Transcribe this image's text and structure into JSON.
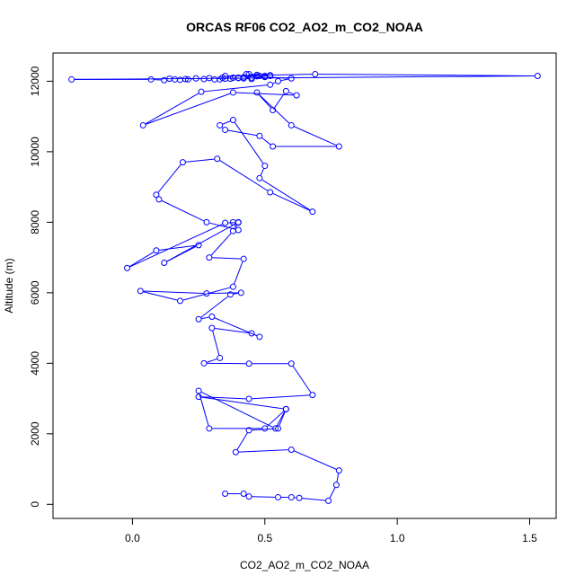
{
  "chart_data": {
    "type": "line",
    "title": "ORCAS RF06 CO2_AO2_m_CO2_NOAA",
    "xlabel": "CO2_AO2_m_CO2_NOAA",
    "ylabel": "Altitude (m)",
    "xlim": [
      -0.3,
      1.6
    ],
    "ylim": [
      -400,
      12800
    ],
    "x_ticks": [
      0.0,
      0.5,
      1.0,
      1.5
    ],
    "x_tick_labels": [
      "0.0",
      "0.5",
      "1.0",
      "1.5"
    ],
    "y_ticks": [
      0,
      2000,
      4000,
      6000,
      8000,
      10000,
      12000
    ],
    "y_tick_labels": [
      "0",
      "2000",
      "4000",
      "6000",
      "8000",
      "10000",
      "12000"
    ],
    "grid": false,
    "marker": "open-circle",
    "series_color": "#0000ff",
    "series": [
      {
        "x": [
          0.35,
          0.42,
          0.44,
          0.55,
          0.6,
          0.63,
          0.74,
          0.77,
          0.78,
          0.6,
          0.39,
          0.44,
          0.55,
          0.58,
          0.5,
          0.29,
          0.25,
          0.54,
          0.58,
          0.25,
          0.44,
          0.68,
          0.6,
          0.44,
          0.27,
          0.33,
          0.3,
          0.45,
          0.48,
          0.3,
          0.25,
          0.37,
          0.41,
          0.28,
          0.03,
          0.18,
          0.38,
          0.42,
          0.29,
          0.38,
          0.4,
          0.12,
          0.25,
          0.09,
          -0.02,
          0.35,
          0.4,
          0.38,
          0.4,
          0.28,
          0.1,
          0.09,
          0.19,
          0.32,
          0.52,
          0.68,
          0.48,
          0.5,
          0.38,
          0.33,
          0.35,
          0.48,
          0.53,
          0.78,
          0.6,
          0.47,
          0.53,
          0.58,
          0.62,
          0.38,
          0.04,
          0.26,
          0.52,
          0.55,
          0.6,
          0.5,
          0.48,
          0.35,
          0.69,
          1.53,
          -0.23,
          0.07,
          0.12,
          0.14,
          0.16,
          0.18,
          0.2,
          0.21,
          0.24,
          0.27,
          0.29,
          0.31,
          0.34,
          0.37,
          0.4,
          0.42,
          0.45,
          0.47,
          0.5,
          0.52,
          0.43,
          0.4,
          0.44,
          0.47,
          0.5,
          0.52,
          0.45,
          0.42,
          0.38,
          0.35,
          0.33
        ],
        "y": [
          300,
          300,
          220,
          200,
          200,
          180,
          100,
          550,
          960,
          1550,
          1480,
          2100,
          2150,
          2700,
          2150,
          2150,
          3220,
          2150,
          2700,
          3050,
          2990,
          3100,
          3990,
          3990,
          4000,
          4150,
          5000,
          4850,
          4750,
          5320,
          5250,
          5950,
          6000,
          5980,
          6050,
          5770,
          6170,
          6960,
          7000,
          7750,
          8000,
          6850,
          7350,
          7200,
          6700,
          7980,
          7990,
          8000,
          7780,
          8000,
          8650,
          8780,
          9700,
          9800,
          8850,
          8300,
          9250,
          9600,
          10900,
          10750,
          10620,
          10450,
          10150,
          10150,
          10750,
          11680,
          11180,
          11720,
          11600,
          11680,
          10750,
          11700,
          11900,
          12000,
          12080,
          12120,
          12150,
          12150,
          12200,
          12150,
          12050,
          12050,
          12030,
          12070,
          12050,
          12040,
          12060,
          12050,
          12080,
          12060,
          12090,
          12050,
          12100,
          12070,
          12090,
          12110,
          12100,
          12140,
          12120,
          12150,
          12200,
          12100,
          12200,
          12180,
          12150,
          12170,
          12060,
          12080,
          12100,
          12070,
          12050
        ]
      }
    ]
  }
}
